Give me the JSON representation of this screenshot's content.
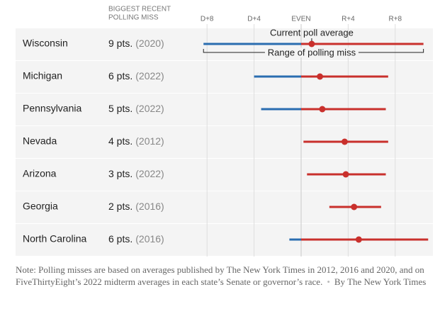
{
  "chart_data": {
    "type": "range",
    "column_header": [
      "BIGGEST RECENT",
      "POLLING MISS"
    ],
    "xlim": [
      -9,
      11
    ],
    "xticks": [
      {
        "value": -8,
        "label": "D+8"
      },
      {
        "value": -4,
        "label": "D+4"
      },
      {
        "value": 0,
        "label": "EVEN"
      },
      {
        "value": 4,
        "label": "R+4"
      },
      {
        "value": 8,
        "label": "R+8"
      }
    ],
    "categories": [
      "Wisconsin",
      "Michigan",
      "Pennsylvania",
      "Nevada",
      "Arizona",
      "Georgia",
      "North Carolina"
    ],
    "miss_labels": [
      "9 pts.",
      "6 pts.",
      "5 pts.",
      "4 pts.",
      "3 pts.",
      "2 pts.",
      "6 pts."
    ],
    "years": [
      "(2020)",
      "(2022)",
      "(2022)",
      "(2012)",
      "(2022)",
      "(2016)",
      "(2016)"
    ],
    "low": [
      -8.3,
      -4.0,
      -3.4,
      0.2,
      0.5,
      2.4,
      -1.0
    ],
    "high": [
      10.4,
      7.4,
      7.2,
      7.4,
      7.2,
      6.8,
      10.8
    ],
    "current": [
      0.9,
      1.6,
      1.8,
      3.7,
      3.8,
      4.5,
      4.9
    ],
    "dem_color": "#2a6db0",
    "rep_color": "#c9302c",
    "annotations": {
      "current": "Current poll average",
      "range": "Range of polling miss"
    },
    "note": "Note: Polling misses are based on averages published by The New York Times in 2012, 2016 and 2020, and on FiveThirtyEight’s 2022 midterm averages in each state’s Senate or governor’s race.",
    "byline": "By The New York Times"
  }
}
